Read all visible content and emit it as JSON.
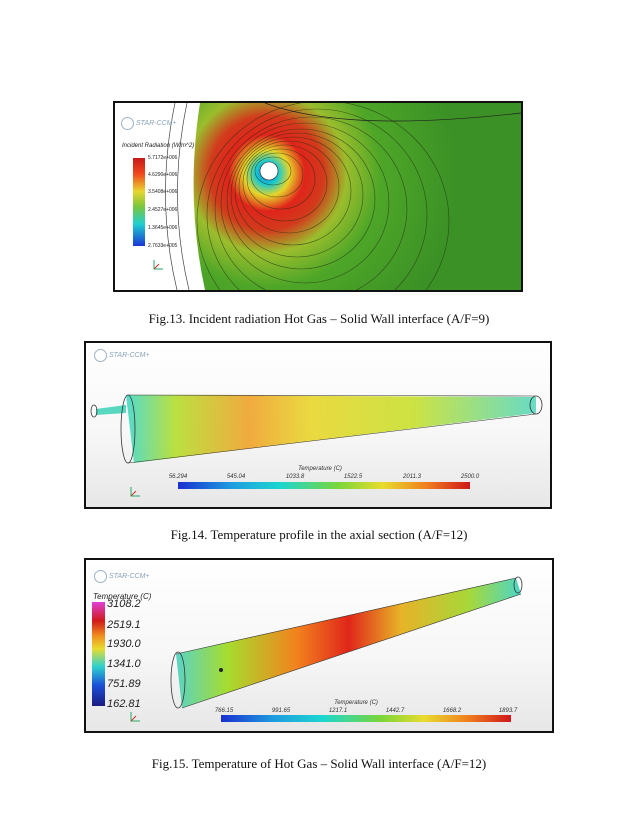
{
  "figures": [
    {
      "caption": "Fig.13. Incident radiation Hot Gas – Solid Wall interface (A/F=9)",
      "logo_text": "STAR-CCM+",
      "legend": {
        "title": "Incident Radiation (W/m^2)",
        "values": [
          "5.7172e+006",
          "4.6290e+006",
          "3.5408e+006",
          "2.4527e+006",
          "1.3645e+006",
          "2.7633e+005"
        ]
      }
    },
    {
      "caption": "Fig.14. Temperature profile in the axial section (A/F=12)",
      "logo_text": "STAR-CCM+",
      "legend": {
        "title": "Temperature (C)",
        "values": [
          "56.294",
          "545.04",
          "1033.8",
          "1522.5",
          "2011.3",
          "2500.0"
        ]
      }
    },
    {
      "caption": "Fig.15. Temperature of Hot Gas – Solid Wall interface (A/F=12)",
      "logo_text": "STAR-CCM+",
      "legend_left": {
        "title": "Temperature (C)",
        "values": [
          "3108.2",
          "2519.1",
          "1930.0",
          "1341.0",
          "751.89",
          "162.81"
        ]
      },
      "legend_bottom": {
        "title": "Temperature (C)",
        "values": [
          "766.15",
          "991.65",
          "1217.1",
          "1442.7",
          "1668.2",
          "1893.7"
        ]
      }
    }
  ],
  "colors": {
    "accent_red": "#d8201a",
    "accent_green": "#5fb82e",
    "accent_cyan": "#19d8d8"
  },
  "axis_label": "Y Z"
}
